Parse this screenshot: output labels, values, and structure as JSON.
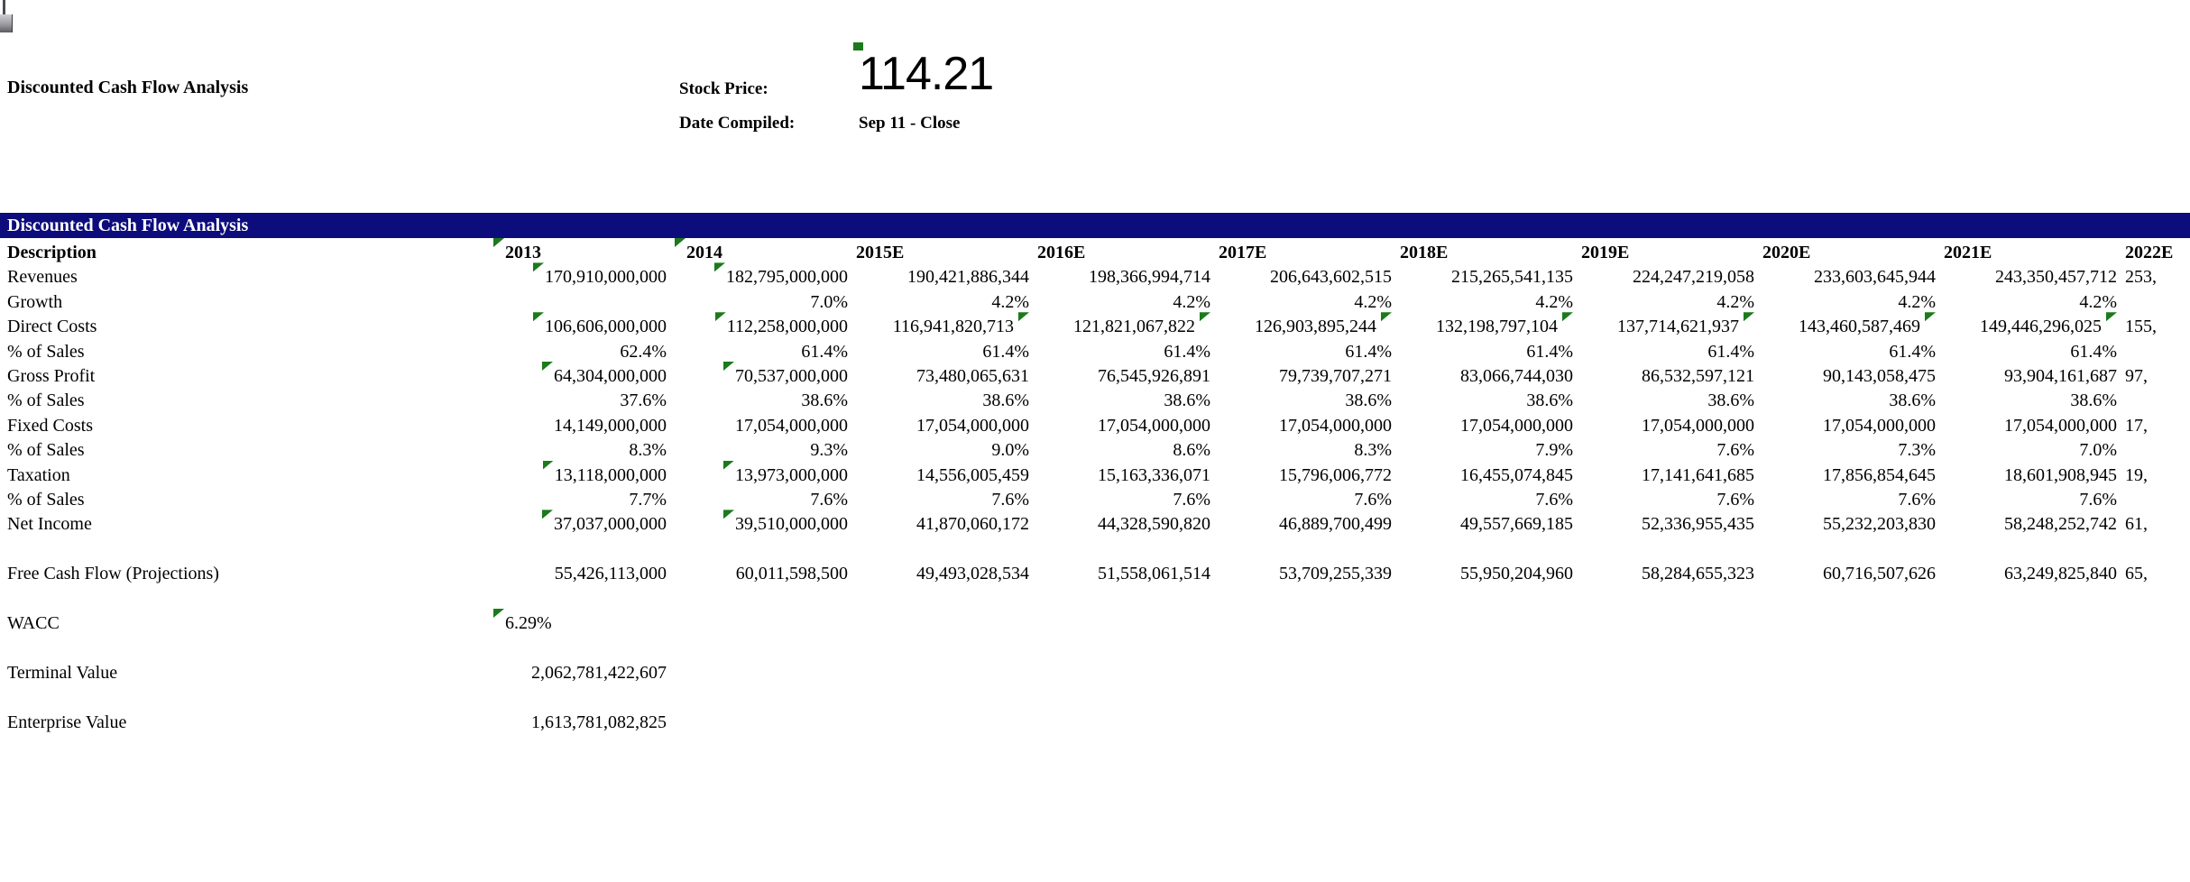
{
  "window": {
    "artifact_name": "scroll-artifact"
  },
  "header": {
    "title": "Discounted Cash Flow Analysis",
    "stock_price_label": "Stock Price:",
    "stock_price_value": "114.21",
    "stock_price_marker": "green-corner-marker",
    "date_compiled_label": "Date Compiled:",
    "date_compiled_value": "Sep 11 - Close"
  },
  "colors": {
    "banner_bg": "#0c0c7c",
    "banner_text": "#ffffff",
    "marker_green": "#1b7a1b",
    "text": "#000000"
  },
  "table": {
    "banner_title": "Discounted Cash Flow Analysis",
    "description_header": "Description",
    "year_columns": [
      {
        "label": "2013",
        "marker": true
      },
      {
        "label": "2014",
        "marker": true
      },
      {
        "label": "2015E"
      },
      {
        "label": "2016E"
      },
      {
        "label": "2017E"
      },
      {
        "label": "2018E"
      },
      {
        "label": "2019E"
      },
      {
        "label": "2020E"
      },
      {
        "label": "2021E"
      },
      {
        "label": "2022E"
      }
    ],
    "rows": [
      {
        "label": "Revenues",
        "cells": [
          {
            "v": "170,910,000,000",
            "lead": true
          },
          {
            "v": "182,795,000,000",
            "lead": true
          },
          {
            "v": "190,421,886,344"
          },
          {
            "v": "198,366,994,714"
          },
          {
            "v": "206,643,602,515"
          },
          {
            "v": "215,265,541,135"
          },
          {
            "v": "224,247,219,058"
          },
          {
            "v": "233,603,645,944"
          },
          {
            "v": "243,350,457,712"
          },
          {
            "v": "253,",
            "align": "left"
          }
        ]
      },
      {
        "label": "Growth",
        "cells": [
          null,
          {
            "v": "7.0%"
          },
          {
            "v": "4.2%"
          },
          {
            "v": "4.2%"
          },
          {
            "v": "4.2%"
          },
          {
            "v": "4.2%"
          },
          {
            "v": "4.2%"
          },
          {
            "v": "4.2%"
          },
          {
            "v": "4.2%"
          },
          null
        ]
      },
      {
        "label": "Direct Costs",
        "cells": [
          {
            "v": "106,606,000,000",
            "lead": true
          },
          {
            "v": "112,258,000,000",
            "lead": true
          },
          {
            "v": "116,941,820,713",
            "trail": true
          },
          {
            "v": "121,821,067,822",
            "trail": true
          },
          {
            "v": "126,903,895,244",
            "trail": true
          },
          {
            "v": "132,198,797,104",
            "trail": true
          },
          {
            "v": "137,714,621,937",
            "trail": true
          },
          {
            "v": "143,460,587,469",
            "trail": true
          },
          {
            "v": "149,446,296,025",
            "trail": true
          },
          {
            "v": "155,",
            "align": "left"
          }
        ]
      },
      {
        "label": "% of Sales",
        "cells": [
          {
            "v": "62.4%"
          },
          {
            "v": "61.4%"
          },
          {
            "v": "61.4%"
          },
          {
            "v": "61.4%"
          },
          {
            "v": "61.4%"
          },
          {
            "v": "61.4%"
          },
          {
            "v": "61.4%"
          },
          {
            "v": "61.4%"
          },
          {
            "v": "61.4%"
          },
          null
        ]
      },
      {
        "label": "Gross Profit",
        "cells": [
          {
            "v": "64,304,000,000",
            "lead": true
          },
          {
            "v": "70,537,000,000",
            "lead": true
          },
          {
            "v": "73,480,065,631"
          },
          {
            "v": "76,545,926,891"
          },
          {
            "v": "79,739,707,271"
          },
          {
            "v": "83,066,744,030"
          },
          {
            "v": "86,532,597,121"
          },
          {
            "v": "90,143,058,475"
          },
          {
            "v": "93,904,161,687"
          },
          {
            "v": "97,",
            "align": "left"
          }
        ]
      },
      {
        "label": "% of Sales",
        "cells": [
          {
            "v": "37.6%"
          },
          {
            "v": "38.6%"
          },
          {
            "v": "38.6%"
          },
          {
            "v": "38.6%"
          },
          {
            "v": "38.6%"
          },
          {
            "v": "38.6%"
          },
          {
            "v": "38.6%"
          },
          {
            "v": "38.6%"
          },
          {
            "v": "38.6%"
          },
          null
        ]
      },
      {
        "label": "Fixed Costs",
        "cells": [
          {
            "v": "14,149,000,000"
          },
          {
            "v": "17,054,000,000"
          },
          {
            "v": "17,054,000,000"
          },
          {
            "v": "17,054,000,000"
          },
          {
            "v": "17,054,000,000"
          },
          {
            "v": "17,054,000,000"
          },
          {
            "v": "17,054,000,000"
          },
          {
            "v": "17,054,000,000"
          },
          {
            "v": "17,054,000,000"
          },
          {
            "v": "17,",
            "align": "left"
          }
        ]
      },
      {
        "label": "% of Sales",
        "cells": [
          {
            "v": "8.3%"
          },
          {
            "v": "9.3%"
          },
          {
            "v": "9.0%"
          },
          {
            "v": "8.6%"
          },
          {
            "v": "8.3%"
          },
          {
            "v": "7.9%"
          },
          {
            "v": "7.6%"
          },
          {
            "v": "7.3%"
          },
          {
            "v": "7.0%"
          },
          null
        ]
      },
      {
        "label": "Taxation",
        "cells": [
          {
            "v": "13,118,000,000",
            "lead": true
          },
          {
            "v": "13,973,000,000",
            "lead": true
          },
          {
            "v": "14,556,005,459"
          },
          {
            "v": "15,163,336,071"
          },
          {
            "v": "15,796,006,772"
          },
          {
            "v": "16,455,074,845"
          },
          {
            "v": "17,141,641,685"
          },
          {
            "v": "17,856,854,645"
          },
          {
            "v": "18,601,908,945"
          },
          {
            "v": "19,",
            "align": "left"
          }
        ]
      },
      {
        "label": "% of Sales",
        "cells": [
          {
            "v": "7.7%"
          },
          {
            "v": "7.6%"
          },
          {
            "v": "7.6%"
          },
          {
            "v": "7.6%"
          },
          {
            "v": "7.6%"
          },
          {
            "v": "7.6%"
          },
          {
            "v": "7.6%"
          },
          {
            "v": "7.6%"
          },
          {
            "v": "7.6%"
          },
          null
        ]
      },
      {
        "label": "Net Income",
        "cells": [
          {
            "v": "37,037,000,000",
            "lead": true
          },
          {
            "v": "39,510,000,000",
            "lead": true
          },
          {
            "v": "41,870,060,172"
          },
          {
            "v": "44,328,590,820"
          },
          {
            "v": "46,889,700,499"
          },
          {
            "v": "49,557,669,185"
          },
          {
            "v": "52,336,955,435"
          },
          {
            "v": "55,232,203,830"
          },
          {
            "v": "58,248,252,742"
          },
          {
            "v": "61,",
            "align": "left"
          }
        ]
      },
      {
        "label": "",
        "cells": []
      },
      {
        "label": "Free Cash Flow (Projections)",
        "cells": [
          {
            "v": "55,426,113,000"
          },
          {
            "v": "60,011,598,500"
          },
          {
            "v": "49,493,028,534"
          },
          {
            "v": "51,558,061,514"
          },
          {
            "v": "53,709,255,339"
          },
          {
            "v": "55,950,204,960"
          },
          {
            "v": "58,284,655,323"
          },
          {
            "v": "60,716,507,626"
          },
          {
            "v": "63,249,825,840"
          },
          {
            "v": "65,",
            "align": "left"
          }
        ]
      },
      {
        "label": "",
        "cells": []
      },
      {
        "label": "WACC",
        "cells": [
          {
            "v": "6.29%",
            "lead": true,
            "align": "left"
          },
          null,
          null,
          null,
          null,
          null,
          null,
          null,
          null,
          null
        ]
      },
      {
        "label": "",
        "cells": []
      },
      {
        "label": "Terminal Value",
        "wide_value": "2,062,781,422,607"
      },
      {
        "label": "",
        "cells": []
      },
      {
        "label": "Enterprise Value",
        "wide_value": "1,613,781,082,825"
      }
    ]
  }
}
